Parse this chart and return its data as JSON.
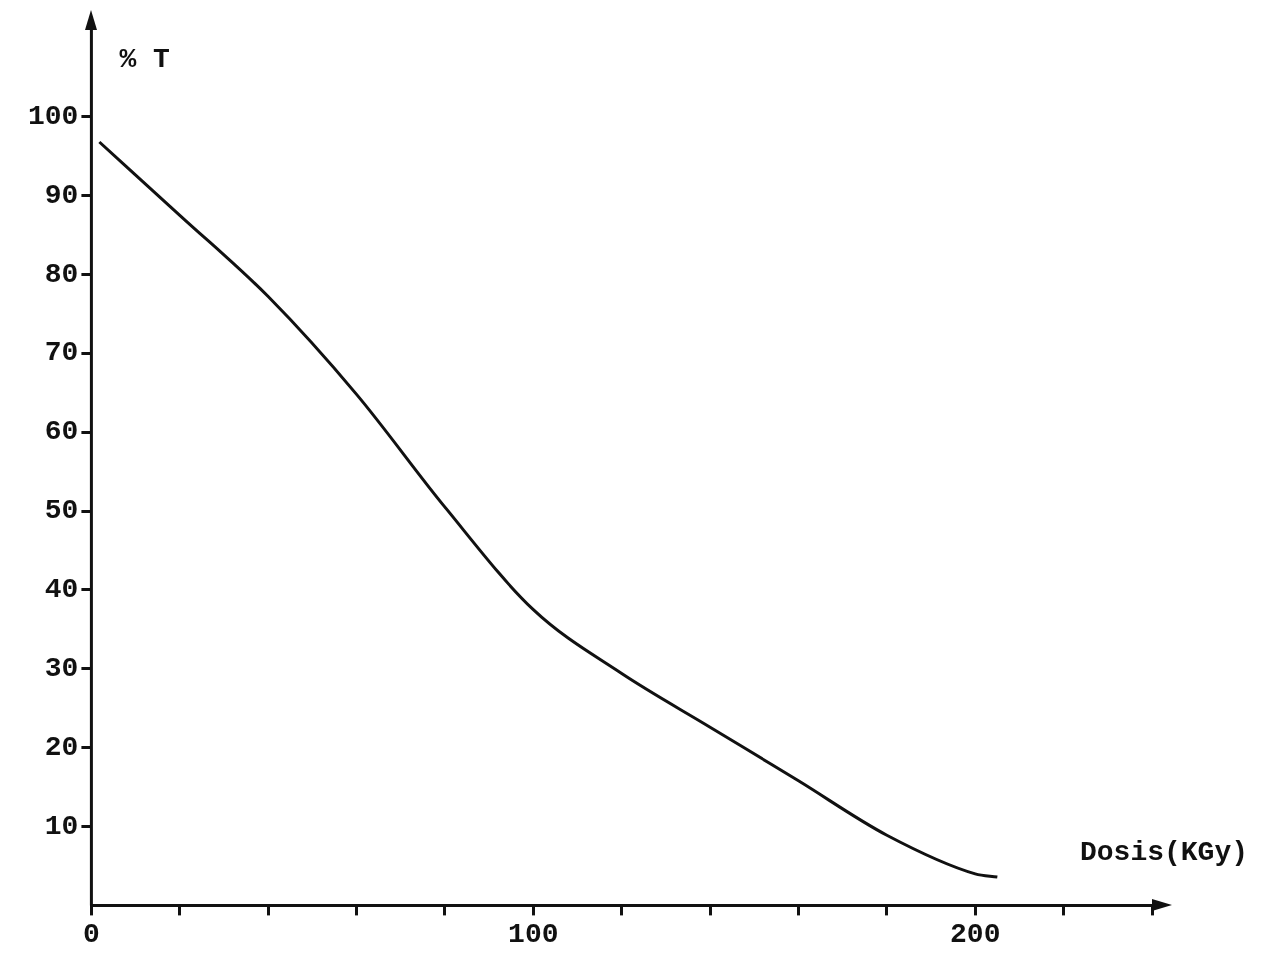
{
  "chart_data": {
    "type": "line",
    "xlabel": "Dosis(KGy)",
    "ylabel": "% T",
    "marker": "none",
    "color": "#111111",
    "x": [
      1.8,
      20,
      40,
      60,
      80,
      100,
      120,
      140,
      160,
      180,
      200,
      205
    ],
    "values": [
      96.8,
      87.5,
      77.2,
      64.8,
      50.5,
      37.5,
      29.4,
      22.6,
      15.8,
      8.9,
      4.0,
      3.6
    ],
    "xlim": [
      0,
      240
    ],
    "xticks": [
      0,
      {
        "value": 20,
        "label": null
      },
      {
        "value": 40,
        "label": null
      },
      {
        "value": 60,
        "label": null
      },
      {
        "value": 80,
        "label": null
      },
      100,
      {
        "value": 120,
        "label": null
      },
      {
        "value": 140,
        "label": null
      },
      {
        "value": 160,
        "label": null
      },
      {
        "value": 180,
        "label": null
      },
      200,
      {
        "value": 220,
        "label": null
      },
      {
        "value": 240,
        "label": null
      }
    ],
    "ylim": [
      0,
      111
    ],
    "yticks": [
      10,
      20,
      30,
      40,
      50,
      60,
      70,
      80,
      90,
      100
    ]
  }
}
